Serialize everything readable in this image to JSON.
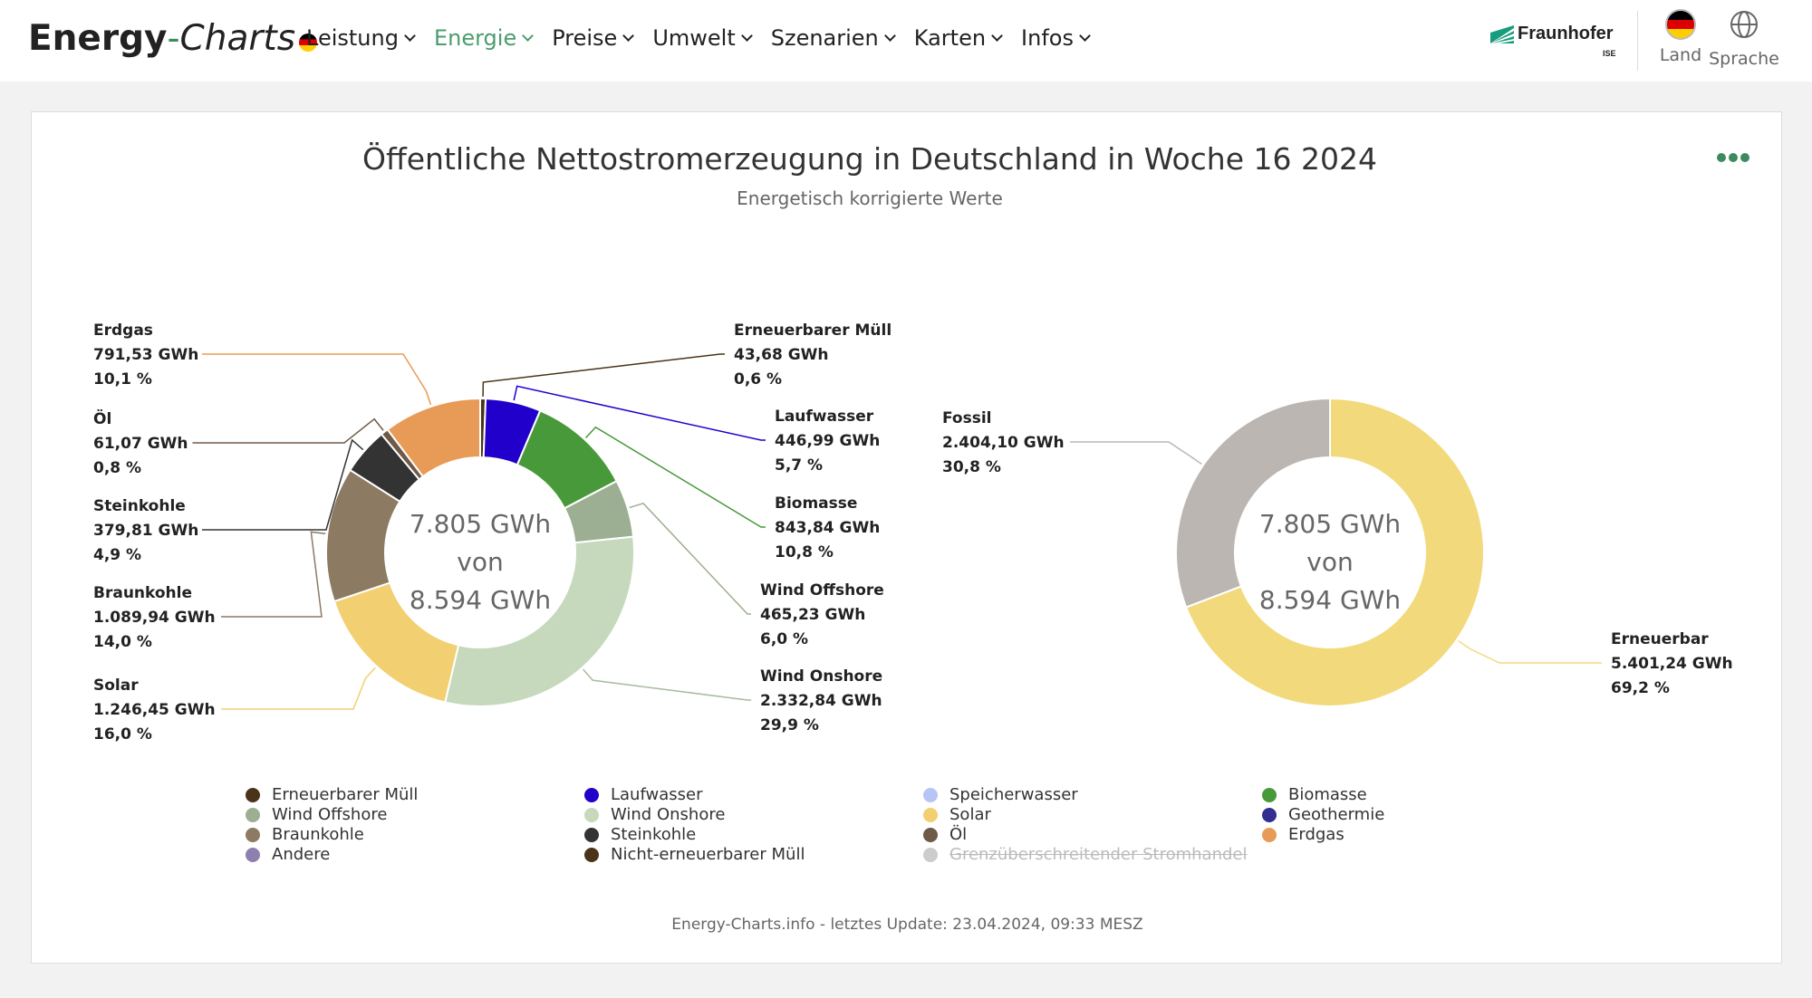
{
  "brand": {
    "bold": "Energy",
    "dash": "-",
    "charts": "Charts"
  },
  "menu": [
    {
      "label": "Leistung",
      "active": false
    },
    {
      "label": "Energie",
      "active": true
    },
    {
      "label": "Preise",
      "active": false
    },
    {
      "label": "Umwelt",
      "active": false
    },
    {
      "label": "Szenarien",
      "active": false
    },
    {
      "label": "Karten",
      "active": false
    },
    {
      "label": "Infos",
      "active": false
    }
  ],
  "partner": {
    "name": "Fraunhofer",
    "sub": "ISE"
  },
  "nav_buttons": {
    "land": "Land",
    "sprache": "Sprache"
  },
  "chart_data": [
    {
      "type": "pie",
      "title": "Öffentliche Nettostromerzeugung in Deutschland in Woche 16 2024",
      "subtitle": "Energetisch korrigierte Werte",
      "center_lines": [
        "7.805 GWh",
        "von",
        "8.594 GWh"
      ],
      "slices": [
        {
          "name": "Erneuerbarer Müll",
          "value": 43.68,
          "value_label": "43,68 GWh",
          "percent_label": "0,6 %",
          "color": "#4a3319"
        },
        {
          "name": "Laufwasser",
          "value": 446.99,
          "value_label": "446,99 GWh",
          "percent_label": "5,7 %",
          "color": "#2200cc"
        },
        {
          "name": "Biomasse",
          "value": 843.84,
          "value_label": "843,84 GWh",
          "percent_label": "10,8 %",
          "color": "#47993a"
        },
        {
          "name": "Wind Offshore",
          "value": 465.23,
          "value_label": "465,23 GWh",
          "percent_label": "6,0 %",
          "color": "#9caf92"
        },
        {
          "name": "Wind Onshore",
          "value": 2332.84,
          "value_label": "2.332,84 GWh",
          "percent_label": "29,9 %",
          "color": "#c6d9bc"
        },
        {
          "name": "Solar",
          "value": 1246.45,
          "value_label": "1.246,45 GWh",
          "percent_label": "16,0 %",
          "color": "#f2cf70"
        },
        {
          "name": "Braunkohle",
          "value": 1089.94,
          "value_label": "1.089,94 GWh",
          "percent_label": "14,0 %",
          "color": "#8c7a63"
        },
        {
          "name": "Steinkohle",
          "value": 379.81,
          "value_label": "379,81 GWh",
          "percent_label": "4,9 %",
          "color": "#333333"
        },
        {
          "name": "Öl",
          "value": 61.07,
          "value_label": "61,07 GWh",
          "percent_label": "0,8 %",
          "color": "#6e5a47"
        },
        {
          "name": "Erdgas",
          "value": 791.53,
          "value_label": "791,53 GWh",
          "percent_label": "10,1 %",
          "color": "#e89b57"
        }
      ]
    },
    {
      "type": "pie",
      "center_lines": [
        "7.805 GWh",
        "von",
        "8.594 GWh"
      ],
      "slices": [
        {
          "name": "Erneuerbar",
          "value": 5401.24,
          "value_label": "5.401,24 GWh",
          "percent_label": "69,2 %",
          "color": "#f2da7c"
        },
        {
          "name": "Fossil",
          "value": 2404.1,
          "value_label": "2.404,10 GWh",
          "percent_label": "30,8 %",
          "color": "#bbb6b2"
        }
      ]
    }
  ],
  "legend": [
    {
      "label": "Erneuerbarer Müll",
      "color": "#4a3319",
      "hidden": false
    },
    {
      "label": "Laufwasser",
      "color": "#2200cc",
      "hidden": false
    },
    {
      "label": "Speicherwasser",
      "color": "#b6c5f5",
      "hidden": false
    },
    {
      "label": "Biomasse",
      "color": "#47993a",
      "hidden": false
    },
    {
      "label": "Wind Offshore",
      "color": "#9caf92",
      "hidden": false
    },
    {
      "label": "Wind Onshore",
      "color": "#c6d9bc",
      "hidden": false
    },
    {
      "label": "Solar",
      "color": "#f2cf70",
      "hidden": false
    },
    {
      "label": "Geothermie",
      "color": "#322f8e",
      "hidden": false
    },
    {
      "label": "Braunkohle",
      "color": "#8c7a63",
      "hidden": false
    },
    {
      "label": "Steinkohle",
      "color": "#333333",
      "hidden": false
    },
    {
      "label": "Öl",
      "color": "#6e5a47",
      "hidden": false
    },
    {
      "label": "Erdgas",
      "color": "#e89b57",
      "hidden": false
    },
    {
      "label": "Andere",
      "color": "#8f7fae",
      "hidden": false
    },
    {
      "label": "Nicht-erneuerbarer Müll",
      "color": "#4a3319",
      "hidden": false
    },
    {
      "label": "Grenzüberschreitender Stromhandel",
      "color": "#cccccc",
      "hidden": true
    }
  ],
  "footer": "Energy-Charts.info - letztes Update: 23.04.2024, 09:33 MESZ"
}
